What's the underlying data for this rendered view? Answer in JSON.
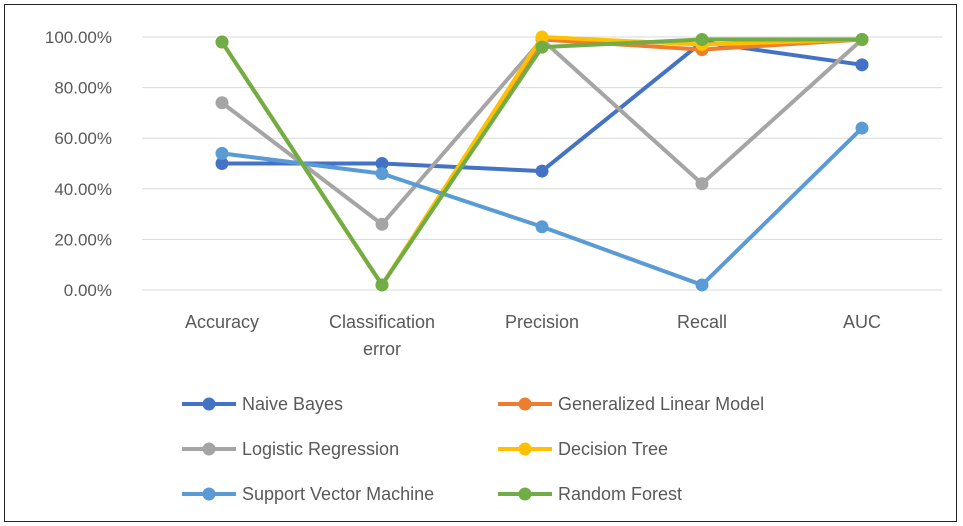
{
  "chart_data": {
    "type": "line",
    "categories": [
      "Accuracy",
      "Classification error",
      "Precision",
      "Recall",
      "AUC"
    ],
    "category_lines": [
      [
        "Accuracy"
      ],
      [
        "Classification",
        "error"
      ],
      [
        "Precision"
      ],
      [
        "Recall"
      ],
      [
        "AUC"
      ]
    ],
    "yticks": [
      "0.00%",
      "20.00%",
      "40.00%",
      "60.00%",
      "80.00%",
      "100.00%"
    ],
    "ylim": [
      0,
      100
    ],
    "grid": true,
    "legend_position": "bottom",
    "series": [
      {
        "name": "Naive Bayes",
        "color": "#4472C4",
        "values": [
          50,
          50,
          47,
          98,
          89
        ]
      },
      {
        "name": "Generalized Linear Model",
        "color": "#ED7D31",
        "values": [
          98,
          2,
          99,
          95,
          99
        ]
      },
      {
        "name": "Logistic Regression",
        "color": "#A5A5A5",
        "values": [
          74,
          26,
          99,
          42,
          99
        ]
      },
      {
        "name": "Decision Tree",
        "color": "#FFC000",
        "values": [
          98,
          2,
          100,
          97,
          99
        ]
      },
      {
        "name": "Support Vector Machine",
        "color": "#5B9BD5",
        "values": [
          54,
          46,
          25,
          2,
          64
        ]
      },
      {
        "name": "Random Forest",
        "color": "#70AD47",
        "values": [
          98,
          2,
          96,
          99,
          99
        ]
      }
    ]
  }
}
